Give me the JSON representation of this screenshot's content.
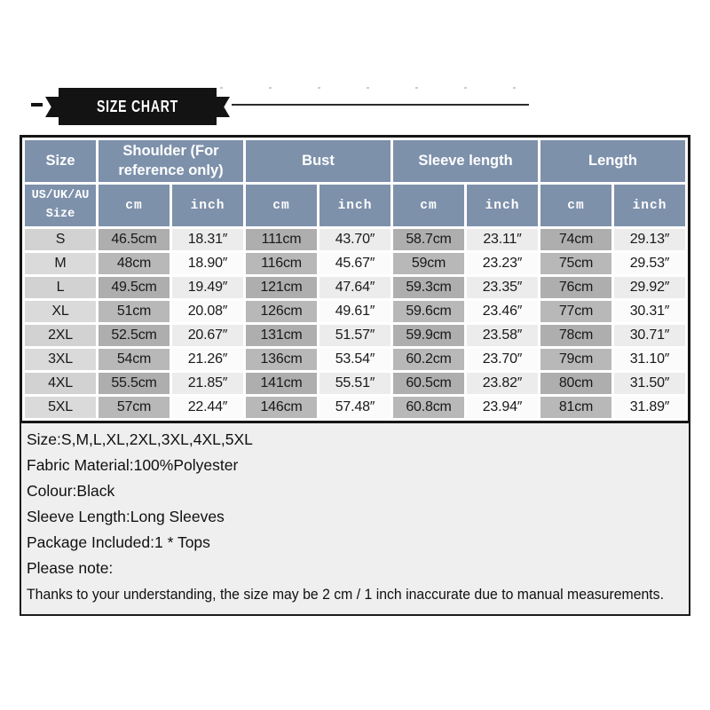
{
  "banner": {
    "title": "SIZE CHART"
  },
  "size_table": {
    "columns": [
      {
        "label": "Size",
        "span": 1
      },
      {
        "label": "Shoulder (For reference only)",
        "span": 2
      },
      {
        "label": "Bust",
        "span": 2
      },
      {
        "label": "Sleeve length",
        "span": 2
      },
      {
        "label": "Length",
        "span": 2
      }
    ],
    "sub_header": {
      "size_label": "US/UK/AU Size",
      "units": [
        "cm",
        "inch",
        "cm",
        "inch",
        "cm",
        "inch",
        "cm",
        "inch"
      ]
    },
    "rows": [
      {
        "size": "S",
        "cells": [
          "46.5cm",
          "18.31″",
          "111cm",
          "43.70″",
          "58.7cm",
          "23.11″",
          "74cm",
          "29.13″"
        ]
      },
      {
        "size": "M",
        "cells": [
          "48cm",
          "18.90″",
          "116cm",
          "45.67″",
          "59cm",
          "23.23″",
          "75cm",
          "29.53″"
        ]
      },
      {
        "size": "L",
        "cells": [
          "49.5cm",
          "19.49″",
          "121cm",
          "47.64″",
          "59.3cm",
          "23.35″",
          "76cm",
          "29.92″"
        ]
      },
      {
        "size": "XL",
        "cells": [
          "51cm",
          "20.08″",
          "126cm",
          "49.61″",
          "59.6cm",
          "23.46″",
          "77cm",
          "30.31″"
        ]
      },
      {
        "size": "2XL",
        "cells": [
          "52.5cm",
          "20.67″",
          "131cm",
          "51.57″",
          "59.9cm",
          "23.58″",
          "78cm",
          "30.71″"
        ]
      },
      {
        "size": "3XL",
        "cells": [
          "54cm",
          "21.26″",
          "136cm",
          "53.54″",
          "60.2cm",
          "23.70″",
          "79cm",
          "31.10″"
        ]
      },
      {
        "size": "4XL",
        "cells": [
          "55.5cm",
          "21.85″",
          "141cm",
          "55.51″",
          "60.5cm",
          "23.82″",
          "80cm",
          "31.50″"
        ]
      },
      {
        "size": "5XL",
        "cells": [
          "57cm",
          "22.44″",
          "146cm",
          "57.48″",
          "60.8cm",
          "23.94″",
          "81cm",
          "31.89″"
        ]
      }
    ]
  },
  "product_info": {
    "lines": [
      "Size:S,M,L,XL,2XL,3XL,4XL,5XL",
      "Fabric Material:100%Polyester",
      "Colour:Black",
      "Sleeve Length:Long Sleeves",
      "Package Included:1 * Tops",
      "Please note:"
    ],
    "note": "Thanks to your understanding, the size may be 2 cm / 1 inch inaccurate due to manual measurements."
  },
  "colors": {
    "header_bg": "#7E91AB",
    "size_col_bg": "#DADADA",
    "cm_col_bg": "#B8B8B8",
    "inch_col_bg": "#FBFBFB",
    "note_bg": "#EFEFEF",
    "banner_bg": "#131313",
    "border": "#161616"
  }
}
